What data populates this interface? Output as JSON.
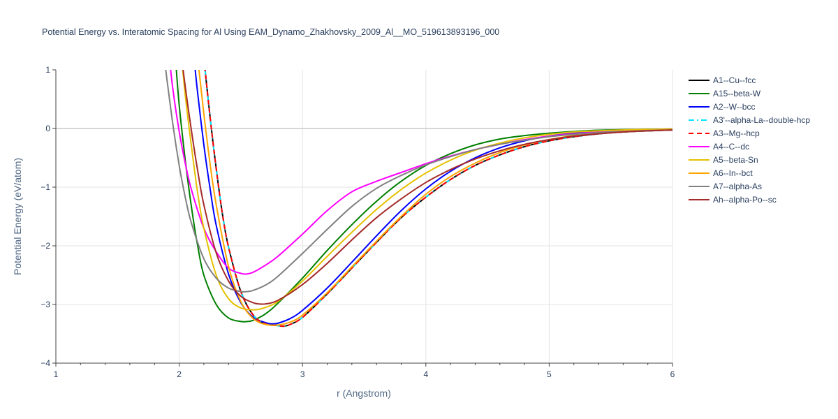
{
  "chart_data": {
    "type": "line",
    "title": "Potential Energy vs. Interatomic Spacing for Al Using EAM_Dynamo_Zhakhovsky_2009_Al__MO_519613893196_000",
    "xlabel": "r (Angstrom)",
    "ylabel": "Potential Energy (eV/atom)",
    "xlim": [
      1,
      6
    ],
    "ylim": [
      -4,
      1
    ],
    "x_ticks": [
      1,
      2,
      3,
      4,
      5,
      6
    ],
    "y_ticks": [
      1,
      0,
      -1,
      -2,
      -3,
      -4
    ],
    "y_tick_labels": [
      "1",
      "0",
      "−1",
      "−2",
      "−3",
      "−4"
    ],
    "grid": true,
    "legend_position": "right",
    "series": [
      {
        "name": "A1--Cu--fcc",
        "color": "#000000",
        "dash": "solid",
        "x": [
          2.2,
          2.25,
          2.3,
          2.35,
          2.4,
          2.5,
          2.6,
          2.7,
          2.8,
          2.85,
          2.9,
          3.0,
          3.2,
          3.4,
          3.6,
          3.8,
          4.0,
          4.2,
          4.4,
          4.6,
          4.8,
          5.0,
          5.2,
          5.4,
          5.6,
          5.8,
          6.0
        ],
        "y": [
          1.2,
          0.2,
          -0.68,
          -1.45,
          -2.02,
          -2.78,
          -3.18,
          -3.33,
          -3.36,
          -3.37,
          -3.34,
          -3.22,
          -2.82,
          -2.38,
          -1.94,
          -1.52,
          -1.17,
          -0.87,
          -0.63,
          -0.45,
          -0.31,
          -0.21,
          -0.14,
          -0.09,
          -0.06,
          -0.04,
          -0.025
        ]
      },
      {
        "name": "A15--beta-W",
        "color": "#008000",
        "dash": "solid",
        "x": [
          1.97,
          2.0,
          2.05,
          2.1,
          2.15,
          2.2,
          2.3,
          2.4,
          2.5,
          2.55,
          2.6,
          2.7,
          2.8,
          3.0,
          3.2,
          3.4,
          3.6,
          3.8,
          4.0,
          4.2,
          4.4,
          4.6,
          4.8,
          5.0,
          5.2,
          5.4,
          5.6,
          5.8,
          6.0
        ],
        "y": [
          1.2,
          0.4,
          -0.55,
          -1.35,
          -2.0,
          -2.5,
          -3.0,
          -3.23,
          -3.29,
          -3.29,
          -3.27,
          -3.16,
          -2.98,
          -2.55,
          -2.08,
          -1.64,
          -1.24,
          -0.9,
          -0.63,
          -0.43,
          -0.28,
          -0.18,
          -0.12,
          -0.08,
          -0.05,
          -0.03,
          -0.02,
          -0.015,
          -0.01
        ]
      },
      {
        "name": "A2--W--bcc",
        "color": "#0000ff",
        "dash": "solid",
        "x": [
          2.12,
          2.15,
          2.2,
          2.25,
          2.3,
          2.4,
          2.5,
          2.6,
          2.7,
          2.75,
          2.8,
          2.9,
          3.0,
          3.2,
          3.4,
          3.6,
          3.8,
          4.0,
          4.2,
          4.4,
          4.6,
          4.8,
          5.0,
          5.2,
          5.4,
          5.6,
          5.8,
          6.0
        ],
        "y": [
          1.2,
          0.6,
          -0.28,
          -1.02,
          -1.65,
          -2.48,
          -2.97,
          -3.22,
          -3.31,
          -3.33,
          -3.32,
          -3.24,
          -3.1,
          -2.72,
          -2.28,
          -1.83,
          -1.4,
          -1.03,
          -0.73,
          -0.5,
          -0.33,
          -0.21,
          -0.13,
          -0.08,
          -0.05,
          -0.03,
          -0.02,
          -0.01
        ]
      },
      {
        "name": "A3'--alpha-La--double-hcp",
        "color": "#00e5ff",
        "dash": "dashdot",
        "x": [
          2.2,
          2.25,
          2.3,
          2.35,
          2.4,
          2.5,
          2.6,
          2.7,
          2.8,
          2.85,
          2.9,
          3.0,
          3.2,
          3.4,
          3.6,
          3.8,
          4.0,
          4.2,
          4.4,
          4.6,
          4.8,
          5.0,
          5.2,
          5.4,
          5.6,
          5.8,
          6.0
        ],
        "y": [
          1.2,
          0.2,
          -0.68,
          -1.45,
          -2.02,
          -2.78,
          -3.18,
          -3.33,
          -3.36,
          -3.37,
          -3.34,
          -3.22,
          -2.82,
          -2.38,
          -1.94,
          -1.52,
          -1.17,
          -0.87,
          -0.63,
          -0.45,
          -0.31,
          -0.21,
          -0.14,
          -0.09,
          -0.06,
          -0.04,
          -0.025
        ]
      },
      {
        "name": "A3--Mg--hcp",
        "color": "#ff0000",
        "dash": "dash",
        "x": [
          2.2,
          2.25,
          2.3,
          2.35,
          2.4,
          2.5,
          2.6,
          2.7,
          2.8,
          2.85,
          2.9,
          3.0,
          3.2,
          3.4,
          3.6,
          3.8,
          4.0,
          4.2,
          4.4,
          4.6,
          4.8,
          5.0,
          5.2,
          5.4,
          5.6,
          5.8,
          6.0
        ],
        "y": [
          1.2,
          0.2,
          -0.68,
          -1.45,
          -2.02,
          -2.78,
          -3.18,
          -3.33,
          -3.36,
          -3.37,
          -3.34,
          -3.22,
          -2.82,
          -2.38,
          -1.94,
          -1.52,
          -1.17,
          -0.87,
          -0.63,
          -0.45,
          -0.31,
          -0.21,
          -0.14,
          -0.09,
          -0.06,
          -0.04,
          -0.025
        ]
      },
      {
        "name": "A4--C--dc",
        "color": "#ff00ff",
        "dash": "solid",
        "x": [
          1.92,
          1.95,
          2.0,
          2.05,
          2.1,
          2.2,
          2.3,
          2.4,
          2.5,
          2.55,
          2.6,
          2.7,
          2.8,
          3.0,
          3.2,
          3.4,
          3.6,
          3.8,
          4.0,
          4.2,
          4.4,
          4.6,
          4.8,
          5.0,
          5.2,
          5.4,
          5.6,
          5.8,
          6.0
        ],
        "y": [
          1.2,
          0.65,
          -0.05,
          -0.6,
          -1.05,
          -1.7,
          -2.1,
          -2.38,
          -2.47,
          -2.48,
          -2.45,
          -2.33,
          -2.18,
          -1.8,
          -1.4,
          -1.08,
          -0.9,
          -0.75,
          -0.6,
          -0.47,
          -0.36,
          -0.27,
          -0.19,
          -0.13,
          -0.09,
          -0.06,
          -0.04,
          -0.025,
          -0.015
        ]
      },
      {
        "name": "A5--beta-Sn",
        "color": "#e5c100",
        "dash": "solid",
        "x": [
          2.02,
          2.05,
          2.1,
          2.15,
          2.2,
          2.3,
          2.4,
          2.5,
          2.6,
          2.65,
          2.7,
          2.8,
          3.0,
          3.2,
          3.4,
          3.6,
          3.8,
          4.0,
          4.2,
          4.4,
          4.6,
          4.8,
          5.0,
          5.2,
          5.4,
          5.6,
          5.8,
          6.0
        ],
        "y": [
          1.2,
          0.55,
          -0.32,
          -1.1,
          -1.7,
          -2.5,
          -2.9,
          -3.06,
          -3.09,
          -3.08,
          -3.05,
          -2.95,
          -2.6,
          -2.18,
          -1.77,
          -1.38,
          -1.04,
          -0.76,
          -0.54,
          -0.37,
          -0.25,
          -0.16,
          -0.1,
          -0.06,
          -0.04,
          -0.025,
          -0.015,
          -0.01
        ]
      },
      {
        "name": "A6--In--bct",
        "color": "#ffa500",
        "dash": "solid",
        "x": [
          2.15,
          2.2,
          2.25,
          2.3,
          2.4,
          2.5,
          2.6,
          2.7,
          2.8,
          2.9,
          3.0,
          3.2,
          3.4,
          3.6,
          3.8,
          4.0,
          4.2,
          4.4,
          4.6,
          4.8,
          5.0,
          5.2,
          5.4,
          5.6,
          5.8,
          6.0
        ],
        "y": [
          1.2,
          0.25,
          -0.6,
          -1.3,
          -2.35,
          -2.95,
          -3.24,
          -3.34,
          -3.35,
          -3.3,
          -3.18,
          -2.8,
          -2.36,
          -1.92,
          -1.5,
          -1.12,
          -0.82,
          -0.59,
          -0.41,
          -0.28,
          -0.19,
          -0.12,
          -0.08,
          -0.05,
          -0.03,
          -0.02
        ]
      },
      {
        "name": "A7--alpha-As",
        "color": "#808080",
        "dash": "solid",
        "x": [
          1.88,
          1.9,
          1.95,
          2.0,
          2.05,
          2.1,
          2.2,
          2.3,
          2.4,
          2.5,
          2.55,
          2.6,
          2.7,
          2.8,
          3.0,
          3.2,
          3.4,
          3.6,
          3.8,
          4.0,
          4.2,
          4.4,
          4.6,
          4.8,
          5.0,
          5.2,
          5.4,
          5.6,
          5.8,
          6.0
        ],
        "y": [
          1.2,
          0.85,
          0.05,
          -0.63,
          -1.18,
          -1.62,
          -2.22,
          -2.55,
          -2.72,
          -2.78,
          -2.78,
          -2.76,
          -2.67,
          -2.52,
          -2.13,
          -1.72,
          -1.33,
          -1.02,
          -0.8,
          -0.62,
          -0.48,
          -0.36,
          -0.27,
          -0.2,
          -0.14,
          -0.1,
          -0.07,
          -0.05,
          -0.035,
          -0.025
        ]
      },
      {
        "name": "Ah--alpha-Po--sc",
        "color": "#a52a2a",
        "dash": "solid",
        "x": [
          2.02,
          2.05,
          2.1,
          2.15,
          2.2,
          2.3,
          2.4,
          2.5,
          2.6,
          2.65,
          2.7,
          2.8,
          3.0,
          3.2,
          3.4,
          3.6,
          3.8,
          4.0,
          4.2,
          4.4,
          4.6,
          4.8,
          5.0,
          5.2,
          5.4,
          5.6,
          5.8,
          6.0
        ],
        "y": [
          1.2,
          0.7,
          -0.05,
          -0.72,
          -1.3,
          -2.12,
          -2.6,
          -2.86,
          -2.97,
          -2.99,
          -2.99,
          -2.93,
          -2.66,
          -2.3,
          -1.9,
          -1.52,
          -1.2,
          -0.92,
          -0.7,
          -0.52,
          -0.38,
          -0.27,
          -0.19,
          -0.13,
          -0.09,
          -0.06,
          -0.04,
          -0.025
        ]
      }
    ]
  }
}
